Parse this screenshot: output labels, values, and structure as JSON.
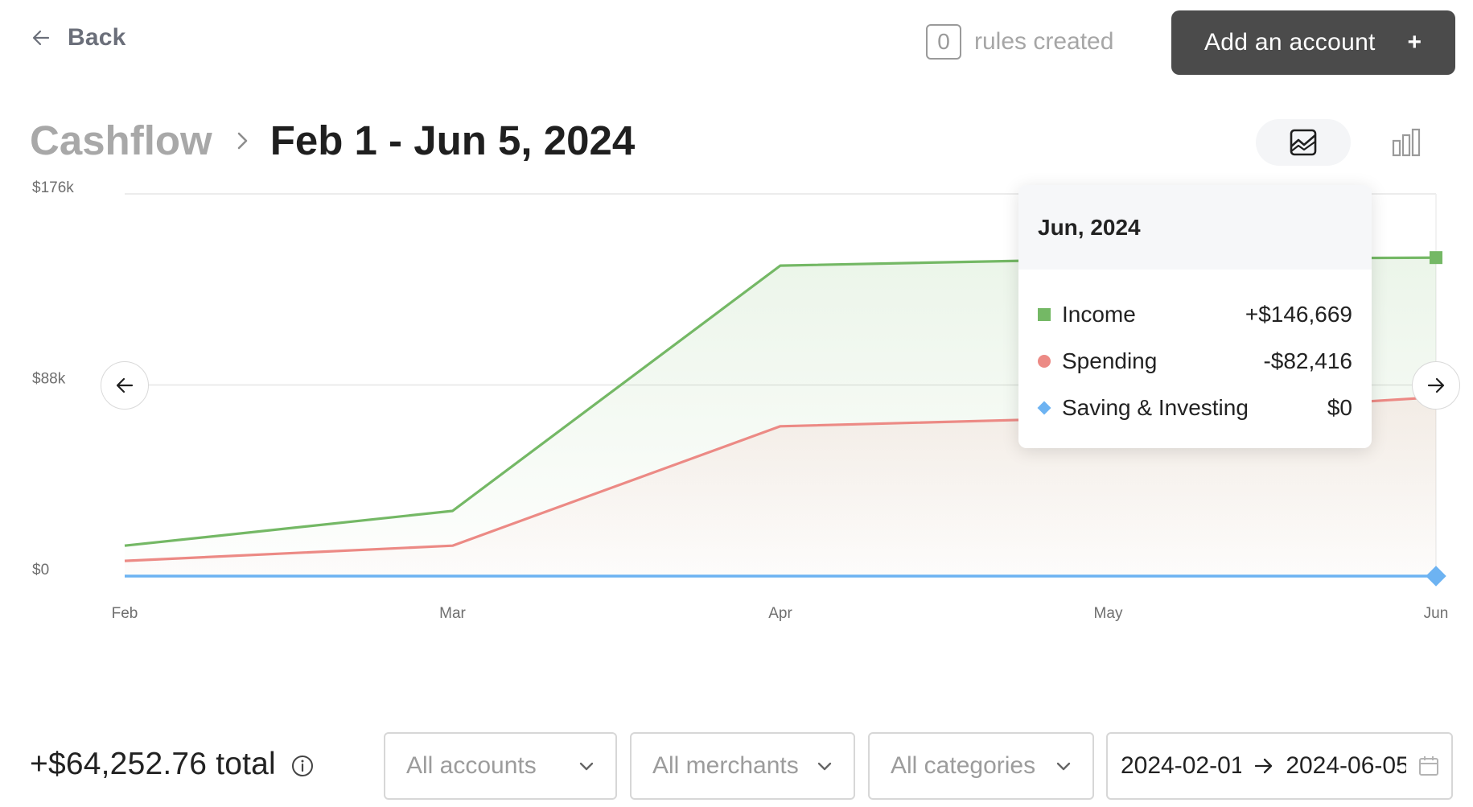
{
  "header": {
    "back_label": "Back",
    "rules_count": "0",
    "rules_label": "rules created",
    "add_account_label": "Add an account",
    "add_account_icon": "+"
  },
  "title": {
    "breadcrumb": "Cashflow",
    "range": "Feb 1 - Jun 5, 2024"
  },
  "view_toggle": {
    "active": "line-chart-icon",
    "inactive": "bar-chart-icon"
  },
  "chart_data": {
    "type": "line",
    "categories": [
      "Feb",
      "Mar",
      "Apr",
      "May",
      "Jun"
    ],
    "y_tick_labels": [
      "$176k",
      "$88k",
      "$0"
    ],
    "ylim": [
      0,
      176000
    ],
    "grid": true,
    "series": [
      {
        "name": "Income",
        "color": "#74b865",
        "values": [
          14000,
          30000,
          143000,
          146000,
          146669
        ]
      },
      {
        "name": "Spending",
        "color": "#ec8a85",
        "values": [
          7000,
          14000,
          69000,
          73000,
          82416
        ]
      },
      {
        "name": "Saving & Investing",
        "color": "#6db3f2",
        "values": [
          0,
          0,
          0,
          0,
          0
        ]
      }
    ]
  },
  "tooltip": {
    "title": "Jun, 2024",
    "rows": [
      {
        "label": "Income",
        "value": "+$146,669",
        "color": "#74b865"
      },
      {
        "label": "Spending",
        "value": "-$82,416",
        "color": "#ec8a85"
      },
      {
        "label": "Saving & Investing",
        "value": "$0",
        "color": "#6db3f2"
      }
    ]
  },
  "footer": {
    "total": "+$64,252.76 total",
    "filters": {
      "accounts": "All accounts",
      "merchants": "All merchants",
      "categories": "All categories"
    },
    "date_start": "2024-02-01",
    "date_end": "2024-06-05"
  }
}
